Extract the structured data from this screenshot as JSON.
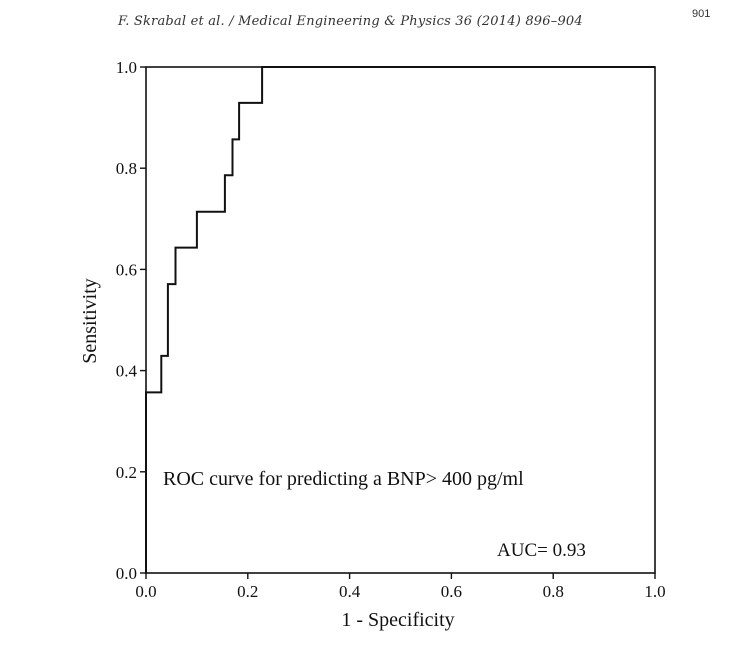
{
  "header": {
    "running_title": "F. Skrabal et al. / Medical Engineering & Physics 36 (2014) 896–904",
    "page_number": "901"
  },
  "chart_data": {
    "type": "line",
    "xlabel": "1 - Specificity",
    "ylabel": "Sensitivity",
    "xlim": [
      0,
      1
    ],
    "ylim": [
      0,
      1
    ],
    "x_ticks": [
      "0.0",
      "0.2",
      "0.4",
      "0.6",
      "0.8",
      "1.0"
    ],
    "y_ticks": [
      "0.0",
      "0.2",
      "0.4",
      "0.6",
      "0.8",
      "1.0"
    ],
    "grid": false,
    "series": [
      {
        "x": [
          0,
          0,
          0.03,
          0.03,
          0.043,
          0.043,
          0.058,
          0.058,
          0.1,
          0.1,
          0.155,
          0.155,
          0.17,
          0.17,
          0.183,
          0.183,
          0.228,
          0.228,
          1.0
        ],
        "y": [
          0,
          0.357,
          0.357,
          0.429,
          0.429,
          0.571,
          0.571,
          0.643,
          0.643,
          0.714,
          0.714,
          0.786,
          0.786,
          0.857,
          0.857,
          0.929,
          0.929,
          1.0,
          1.0
        ]
      }
    ],
    "annotations": [
      "ROC curve for predicting a BNP> 400  pg/ml",
      "AUC= 0.93"
    ]
  }
}
